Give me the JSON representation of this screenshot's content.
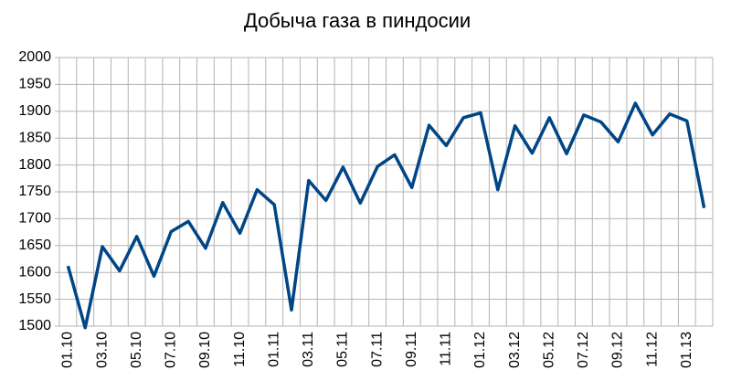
{
  "chart_data": {
    "type": "line",
    "title": "Добыча газа в пиндосии",
    "categories": [
      "01.10",
      null,
      "03.10",
      null,
      "05.10",
      null,
      "07.10",
      null,
      "09.10",
      null,
      "11.10",
      null,
      "01.11",
      null,
      "03.11",
      null,
      "05.11",
      null,
      "07.11",
      null,
      "09.11",
      null,
      "11.11",
      null,
      "01.12",
      null,
      "03.12",
      null,
      "05.12",
      null,
      "07.12",
      null,
      "09.12",
      null,
      "11.12",
      null,
      "01.13",
      null
    ],
    "series": [
      {
        "color": "#004586",
        "values": [
          1612,
          1497,
          1648,
          1603,
          1667,
          1593,
          1676,
          1695,
          1645,
          1730,
          1673,
          1754,
          1726,
          1530,
          1771,
          1734,
          1796,
          1729,
          1797,
          1819,
          1758,
          1874,
          1836,
          1888,
          1897,
          1754,
          1873,
          1822,
          1888,
          1821,
          1893,
          1880,
          1843,
          1915,
          1856,
          1895,
          1882,
          1720
        ]
      }
    ],
    "ylim": [
      1500,
      2000
    ],
    "yticks": [
      1500,
      1550,
      1600,
      1650,
      1700,
      1750,
      1800,
      1850,
      1900,
      1950,
      2000
    ],
    "grid": true
  }
}
